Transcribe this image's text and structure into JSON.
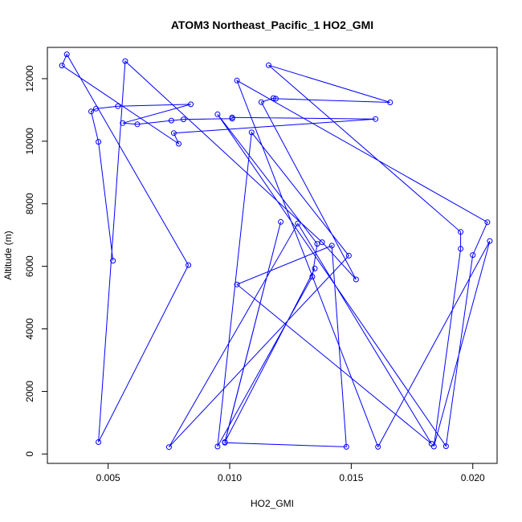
{
  "chart_data": {
    "type": "line",
    "title": "ATOM3 Northeast_Pacific_1 HO2_GMI",
    "xlabel": "HO2_GMI",
    "ylabel": "Altitude (m)",
    "xlim": [
      0.0025,
      0.021
    ],
    "ylim": [
      -300,
      13000
    ],
    "xticks": [
      0.005,
      0.01,
      0.015,
      0.02
    ],
    "xtick_labels": [
      "0.005",
      "0.010",
      "0.015",
      "0.020"
    ],
    "yticks": [
      0,
      2000,
      4000,
      6000,
      8000,
      10000,
      12000
    ],
    "ytick_labels": [
      "0",
      "2000",
      "4000",
      "6000",
      "8000",
      "10000",
      "12000"
    ],
    "grid": false,
    "series": [
      {
        "color": "#0000ff",
        "marker": "open-circle",
        "points": [
          [
            0.0052,
            6180
          ],
          [
            0.0046,
            9980
          ],
          [
            0.0043,
            10950
          ],
          [
            0.0045,
            11040
          ],
          [
            0.0054,
            11120
          ],
          [
            0.0084,
            11180
          ],
          [
            0.0056,
            10580
          ],
          [
            0.0062,
            10540
          ],
          [
            0.0076,
            10660
          ],
          [
            0.0081,
            10700
          ],
          [
            0.0101,
            10720
          ],
          [
            0.0101,
            10760
          ],
          [
            0.016,
            10710
          ],
          [
            0.0077,
            10260
          ],
          [
            0.0079,
            9920
          ],
          [
            0.0031,
            12420
          ],
          [
            0.0033,
            12780
          ],
          [
            0.0083,
            6040
          ],
          [
            0.0046,
            380
          ],
          [
            0.0057,
            12560
          ],
          [
            0.0138,
            6770
          ],
          [
            0.0152,
            5580
          ],
          [
            0.0113,
            11250
          ],
          [
            0.0118,
            11380
          ],
          [
            0.0119,
            11360
          ],
          [
            0.0166,
            11240
          ],
          [
            0.0116,
            12430
          ],
          [
            0.0195,
            7100
          ],
          [
            0.0195,
            6560
          ],
          [
            0.0184,
            240
          ],
          [
            0.0207,
            6810
          ],
          [
            0.0161,
            230
          ],
          [
            0.0103,
            11940
          ],
          [
            0.0206,
            7410
          ],
          [
            0.02,
            6360
          ],
          [
            0.0189,
            250
          ],
          [
            0.0095,
            10860
          ],
          [
            0.0136,
            6720
          ],
          [
            0.0134,
            5670
          ],
          [
            0.0095,
            240
          ],
          [
            0.0109,
            10280
          ],
          [
            0.0149,
            6340
          ],
          [
            0.0075,
            220
          ],
          [
            0.0128,
            7370
          ],
          [
            0.0183,
            330
          ],
          [
            0.0103,
            5420
          ],
          [
            0.0142,
            6660
          ],
          [
            0.0148,
            230
          ],
          [
            0.0098,
            360
          ],
          [
            0.0121,
            7420
          ],
          [
            0.0098,
            380
          ],
          [
            0.0135,
            5930
          ]
        ]
      }
    ]
  }
}
